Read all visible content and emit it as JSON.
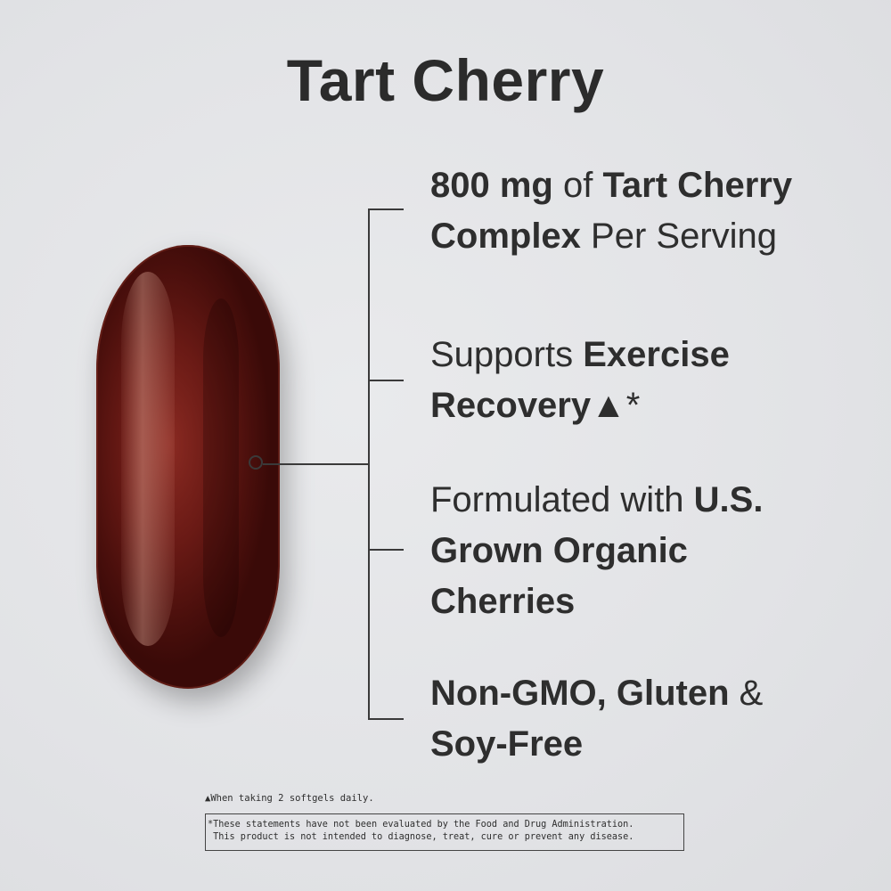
{
  "title": "Tart Cherry",
  "colors": {
    "background": "#e4e5e7",
    "text": "#2e2e2e",
    "softgel": "#5a1510"
  },
  "features": [
    {
      "segments": [
        {
          "text": "800 mg",
          "bold": true
        },
        {
          "text": " of ",
          "bold": false
        },
        {
          "text": "Tart Cherry Complex",
          "bold": true
        },
        {
          "text": " Per Serving",
          "bold": false
        }
      ]
    },
    {
      "segments": [
        {
          "text": "Supports ",
          "bold": false
        },
        {
          "text": "Exercise Recovery",
          "bold": true
        },
        {
          "text": "▲*",
          "bold": false
        }
      ]
    },
    {
      "segments": [
        {
          "text": "Formulated with ",
          "bold": false
        },
        {
          "text": "U.S. Grown Organic Cherries",
          "bold": true
        }
      ]
    },
    {
      "segments": [
        {
          "text": "Non-GMO, Gluten",
          "bold": true
        },
        {
          "text": " & ",
          "bold": false
        },
        {
          "text": "Soy-Free",
          "bold": true
        }
      ]
    }
  ],
  "footnote": "▲When taking 2 softgels daily.",
  "disclaimer": "*These statements have not been evaluated by the Food and Drug Administration.\n This product is not intended to diagnose, treat, cure or prevent any disease."
}
